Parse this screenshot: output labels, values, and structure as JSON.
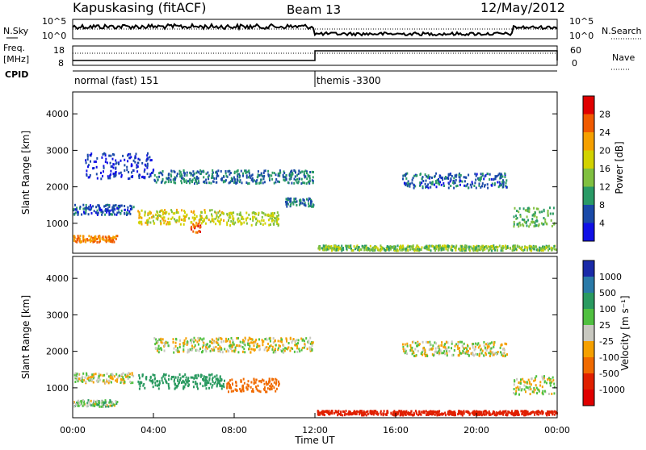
{
  "header": {
    "station": "Kapuskasing (fitACF)",
    "beam": "Beam 13",
    "date": "12/May/2012"
  },
  "top_panels": {
    "nsky_label": "N.Sky",
    "nsearch_label": "N.Search",
    "freq_label_1": "Freq.",
    "freq_label_2": "[MHz]",
    "nave_label": "Nave",
    "cpid_label": "CPID",
    "n_ticks": [
      "10^5",
      "10^0"
    ],
    "n_ticks_right": [
      "10^5",
      "10^0"
    ],
    "freq_ticks": [
      "18",
      "8"
    ],
    "nave_ticks": [
      "60",
      "0"
    ],
    "cpid_segments": [
      {
        "label": "normal (fast) 151",
        "start_hour": 0
      },
      {
        "label": "themis -3300",
        "start_hour": 12
      }
    ]
  },
  "x_axis": {
    "label": "Time UT",
    "ticks": [
      "00:00",
      "04:00",
      "08:00",
      "12:00",
      "16:00",
      "20:00",
      "00:00"
    ],
    "tick_hours": [
      0,
      4,
      8,
      12,
      16,
      20,
      24
    ]
  },
  "chart_data": [
    {
      "type": "heatmap",
      "name": "power",
      "ylabel": "Slant Range [km]",
      "yticks": [
        "4000",
        "3000",
        "2000",
        "1000"
      ],
      "ytick_values": [
        4000,
        3000,
        2000,
        1000
      ],
      "ylim": [
        180,
        4600
      ],
      "xlim_hours": [
        0,
        24
      ],
      "colorbar_label": "Power [dB]",
      "colorbar_ticks": [
        "28",
        "24",
        "20",
        "16",
        "12",
        "8",
        "4"
      ],
      "colorbar_values": [
        28,
        24,
        20,
        16,
        12,
        8,
        4
      ],
      "colorbar_colors": [
        "#e00000",
        "#f05a00",
        "#f5a000",
        "#d2d200",
        "#80c040",
        "#2a9a66",
        "#1a4aa8",
        "#1010e6"
      ],
      "scatter_bands": [
        {
          "h0": 0.0,
          "h1": 2.2,
          "r": 600,
          "hw": 90,
          "v": 24
        },
        {
          "h0": 0.0,
          "h1": 3.0,
          "r": 1400,
          "hw": 140,
          "v": 6
        },
        {
          "h0": 0.6,
          "h1": 4.0,
          "r": 2600,
          "hw": 350,
          "v": 4
        },
        {
          "h0": 3.2,
          "h1": 7.5,
          "r": 1200,
          "hw": 200,
          "v": 18
        },
        {
          "h0": 5.8,
          "h1": 6.3,
          "r": 900,
          "hw": 120,
          "v": 26
        },
        {
          "h0": 7.6,
          "h1": 10.2,
          "r": 1150,
          "hw": 180,
          "v": 16
        },
        {
          "h0": 4.0,
          "h1": 11.9,
          "r": 2300,
          "hw": 180,
          "v": 8
        },
        {
          "h0": 10.5,
          "h1": 11.9,
          "r": 1600,
          "hw": 120,
          "v": 8
        },
        {
          "h0": 12.1,
          "h1": 24.0,
          "r": 350,
          "hw": 70,
          "v": 14
        },
        {
          "h0": 16.3,
          "h1": 21.5,
          "r": 2200,
          "hw": 200,
          "v": 7
        },
        {
          "h0": 21.8,
          "h1": 23.9,
          "r": 1200,
          "hw": 260,
          "v": 12
        }
      ]
    },
    {
      "type": "heatmap",
      "name": "velocity",
      "ylabel": "Slant Range [km]",
      "yticks": [
        "4000",
        "3000",
        "2000",
        "1000"
      ],
      "ytick_values": [
        4000,
        3000,
        2000,
        1000
      ],
      "ylim": [
        180,
        4600
      ],
      "xlim_hours": [
        0,
        24
      ],
      "colorbar_label": "Velocity [m s⁻¹]",
      "colorbar_ticks": [
        "1000",
        "500",
        "100",
        "25",
        "-25",
        "-100",
        "-500",
        "-1000"
      ],
      "colorbar_values": [
        1000,
        500,
        100,
        25,
        -25,
        -100,
        -500,
        -1000
      ],
      "colorbar_colors": [
        "#1a2aa8",
        "#2a7aa8",
        "#2a9a60",
        "#50c040",
        "#c8c8c0",
        "#f5a000",
        "#f06a00",
        "#e02000",
        "#e00000"
      ],
      "scatter_bands": [
        {
          "h0": 0.0,
          "h1": 2.2,
          "r": 600,
          "hw": 90,
          "v": 60
        },
        {
          "h0": 0.0,
          "h1": 3.0,
          "r": 1300,
          "hw": 140,
          "v": 0
        },
        {
          "h0": 3.2,
          "h1": 7.5,
          "r": 1200,
          "hw": 200,
          "v": 300
        },
        {
          "h0": 7.6,
          "h1": 10.2,
          "r": 1100,
          "hw": 180,
          "v": -300
        },
        {
          "h0": 4.0,
          "h1": 11.9,
          "r": 2200,
          "hw": 200,
          "v": 0
        },
        {
          "h0": 12.1,
          "h1": 24.0,
          "r": 340,
          "hw": 60,
          "v": -600
        },
        {
          "h0": 16.3,
          "h1": 21.5,
          "r": 2100,
          "hw": 200,
          "v": 0
        },
        {
          "h0": 21.8,
          "h1": 23.9,
          "r": 1100,
          "hw": 250,
          "v": 0
        }
      ]
    }
  ]
}
